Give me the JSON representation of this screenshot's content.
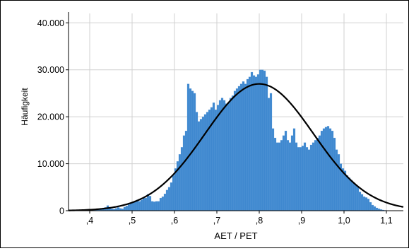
{
  "chart_data": {
    "type": "bar",
    "title": "",
    "xlabel": "AET / PET",
    "ylabel": "Häufigkeit",
    "xlim": [
      0.35,
      1.14
    ],
    "ylim": [
      0,
      42000
    ],
    "grid": true,
    "bar_color": "#3f88cf",
    "curve_color": "#000000",
    "x_ticks": [
      {
        "value": 0.4,
        "label": ",4"
      },
      {
        "value": 0.5,
        "label": ",5"
      },
      {
        "value": 0.6,
        "label": ",6"
      },
      {
        "value": 0.7,
        "label": ",7"
      },
      {
        "value": 0.8,
        "label": ",8"
      },
      {
        "value": 0.9,
        "label": ",9"
      },
      {
        "value": 1.0,
        "label": "1,0"
      },
      {
        "value": 1.1,
        "label": "1,1"
      }
    ],
    "y_ticks": [
      {
        "value": 0,
        "label": "0"
      },
      {
        "value": 10000,
        "label": "10.000"
      },
      {
        "value": 20000,
        "label": "20.000"
      },
      {
        "value": 30000,
        "label": "30.000"
      },
      {
        "value": 40000,
        "label": "40.000"
      }
    ],
    "bin_width": 0.005,
    "bins": [
      [
        0.36,
        50
      ],
      [
        0.365,
        80
      ],
      [
        0.37,
        100
      ],
      [
        0.375,
        120
      ],
      [
        0.38,
        150
      ],
      [
        0.385,
        180
      ],
      [
        0.39,
        200
      ],
      [
        0.395,
        220
      ],
      [
        0.4,
        250
      ],
      [
        0.405,
        280
      ],
      [
        0.41,
        300
      ],
      [
        0.415,
        350
      ],
      [
        0.42,
        400
      ],
      [
        0.425,
        450
      ],
      [
        0.43,
        600
      ],
      [
        0.435,
        700
      ],
      [
        0.44,
        1100
      ],
      [
        0.445,
        600
      ],
      [
        0.45,
        400
      ],
      [
        0.455,
        350
      ],
      [
        0.46,
        500
      ],
      [
        0.465,
        700
      ],
      [
        0.47,
        500
      ],
      [
        0.475,
        400
      ],
      [
        0.48,
        800
      ],
      [
        0.485,
        1000
      ],
      [
        0.49,
        1300
      ],
      [
        0.495,
        1600
      ],
      [
        0.5,
        1900
      ],
      [
        0.505,
        2100
      ],
      [
        0.51,
        2300
      ],
      [
        0.515,
        2000
      ],
      [
        0.52,
        2300
      ],
      [
        0.525,
        2700
      ],
      [
        0.53,
        2700
      ],
      [
        0.535,
        3500
      ],
      [
        0.54,
        3100
      ],
      [
        0.545,
        2000
      ],
      [
        0.55,
        1900
      ],
      [
        0.555,
        2000
      ],
      [
        0.56,
        2000
      ],
      [
        0.565,
        2700
      ],
      [
        0.57,
        3000
      ],
      [
        0.575,
        3600
      ],
      [
        0.58,
        4400
      ],
      [
        0.585,
        5000
      ],
      [
        0.59,
        6000
      ],
      [
        0.595,
        7500
      ],
      [
        0.6,
        9000
      ],
      [
        0.605,
        10500
      ],
      [
        0.61,
        12000
      ],
      [
        0.615,
        13500
      ],
      [
        0.62,
        16000
      ],
      [
        0.625,
        17000
      ],
      [
        0.63,
        27000
      ],
      [
        0.635,
        26000
      ],
      [
        0.64,
        25500
      ],
      [
        0.645,
        25000
      ],
      [
        0.65,
        21000
      ],
      [
        0.655,
        19000
      ],
      [
        0.66,
        19500
      ],
      [
        0.665,
        20000
      ],
      [
        0.67,
        20500
      ],
      [
        0.675,
        21000
      ],
      [
        0.68,
        21500
      ],
      [
        0.685,
        22000
      ],
      [
        0.69,
        23000
      ],
      [
        0.695,
        21500
      ],
      [
        0.7,
        22500
      ],
      [
        0.705,
        23500
      ],
      [
        0.71,
        24000
      ],
      [
        0.715,
        23500
      ],
      [
        0.72,
        22800
      ],
      [
        0.725,
        23000
      ],
      [
        0.73,
        24000
      ],
      [
        0.735,
        24500
      ],
      [
        0.74,
        25500
      ],
      [
        0.745,
        26000
      ],
      [
        0.75,
        26500
      ],
      [
        0.755,
        27000
      ],
      [
        0.76,
        27500
      ],
      [
        0.765,
        27000
      ],
      [
        0.77,
        28000
      ],
      [
        0.775,
        28500
      ],
      [
        0.78,
        29500
      ],
      [
        0.785,
        28800
      ],
      [
        0.79,
        28500
      ],
      [
        0.795,
        29000
      ],
      [
        0.8,
        30000
      ],
      [
        0.805,
        30000
      ],
      [
        0.81,
        29800
      ],
      [
        0.815,
        28500
      ],
      [
        0.82,
        24000
      ],
      [
        0.825,
        25000
      ],
      [
        0.83,
        17500
      ],
      [
        0.835,
        15500
      ],
      [
        0.84,
        14500
      ],
      [
        0.845,
        14500
      ],
      [
        0.85,
        15000
      ],
      [
        0.855,
        16000
      ],
      [
        0.86,
        17000
      ],
      [
        0.865,
        15000
      ],
      [
        0.87,
        14500
      ],
      [
        0.875,
        16000
      ],
      [
        0.88,
        17500
      ],
      [
        0.885,
        14500
      ],
      [
        0.89,
        13500
      ],
      [
        0.895,
        13500
      ],
      [
        0.9,
        13800
      ],
      [
        0.905,
        14500
      ],
      [
        0.91,
        13500
      ],
      [
        0.915,
        13000
      ],
      [
        0.92,
        14000
      ],
      [
        0.925,
        14500
      ],
      [
        0.93,
        15000
      ],
      [
        0.935,
        15500
      ],
      [
        0.94,
        16000
      ],
      [
        0.945,
        17000
      ],
      [
        0.95,
        17500
      ],
      [
        0.955,
        17800
      ],
      [
        0.96,
        18000
      ],
      [
        0.965,
        17500
      ],
      [
        0.97,
        17000
      ],
      [
        0.975,
        15500
      ],
      [
        0.98,
        13000
      ],
      [
        0.985,
        12000
      ],
      [
        0.99,
        10000
      ],
      [
        0.995,
        9000
      ],
      [
        1.0,
        8500
      ],
      [
        1.005,
        7500
      ],
      [
        1.01,
        7000
      ],
      [
        1.015,
        6500
      ],
      [
        1.02,
        6000
      ],
      [
        1.025,
        5500
      ],
      [
        1.03,
        5000
      ],
      [
        1.035,
        4000
      ],
      [
        1.04,
        3500
      ],
      [
        1.045,
        3000
      ],
      [
        1.05,
        2800
      ],
      [
        1.055,
        2500
      ],
      [
        1.06,
        1800
      ],
      [
        1.065,
        1200
      ],
      [
        1.07,
        900
      ],
      [
        1.075,
        600
      ],
      [
        1.08,
        400
      ],
      [
        1.085,
        250
      ],
      [
        1.09,
        150
      ],
      [
        1.095,
        80
      ],
      [
        1.1,
        40
      ],
      [
        1.105,
        20
      ]
    ],
    "normal_curve": {
      "mean": 0.8,
      "sd": 0.128,
      "peak": 27000
    }
  }
}
